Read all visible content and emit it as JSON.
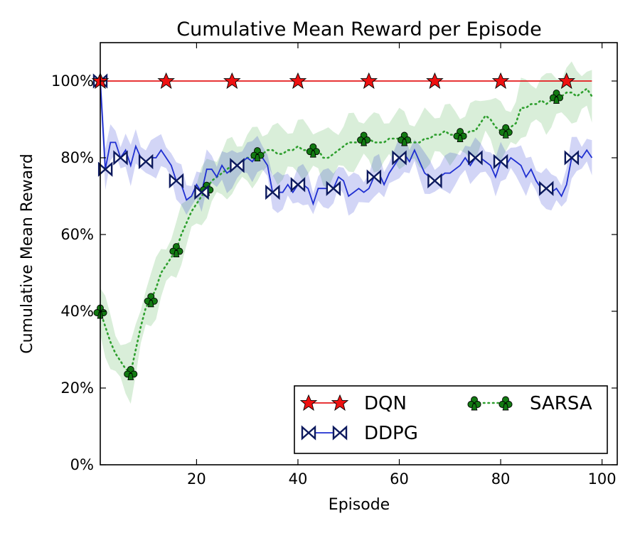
{
  "chart_data": {
    "type": "line",
    "title": "Cumulative Mean Reward per Episode",
    "xlabel": "Episode",
    "ylabel": "Cumulative Mean Reward",
    "xlim": [
      1,
      103
    ],
    "ylim": [
      0,
      1.1
    ],
    "xticks": [
      20,
      40,
      60,
      80,
      100
    ],
    "yticks": [
      0,
      0.2,
      0.4,
      0.6,
      0.8,
      1.0
    ],
    "ytick_labels": [
      "0%",
      "20%",
      "40%",
      "60%",
      "80%",
      "100%"
    ],
    "grid": false,
    "legend_position": "bottom-right",
    "series": [
      {
        "name": "DQN",
        "color": "#e41a1c",
        "marker": "star",
        "marker_color": "#ee1111",
        "line_style": "solid",
        "x": [
          1,
          14,
          27,
          40,
          54,
          67,
          80,
          93,
          98
        ],
        "y": [
          1.0,
          1.0,
          1.0,
          1.0,
          1.0,
          1.0,
          1.0,
          1.0,
          1.0
        ],
        "band_width": 0.0,
        "marker_x": [
          1,
          14,
          27,
          40,
          54,
          67,
          80,
          93
        ]
      },
      {
        "name": "DDPG",
        "color": "#1f2fd1",
        "marker": "bowtie",
        "marker_color": "#0d1a5e",
        "line_style": "solid",
        "x": [
          1,
          2,
          3,
          4,
          5,
          6,
          7,
          8,
          9,
          10,
          11,
          12,
          13,
          14,
          15,
          16,
          17,
          18,
          19,
          20,
          21,
          22,
          23,
          24,
          25,
          26,
          27,
          28,
          29,
          30,
          31,
          32,
          33,
          34,
          35,
          36,
          37,
          38,
          39,
          40,
          41,
          42,
          43,
          44,
          45,
          46,
          47,
          48,
          49,
          50,
          51,
          52,
          53,
          54,
          55,
          56,
          57,
          58,
          59,
          60,
          61,
          62,
          63,
          64,
          65,
          66,
          67,
          68,
          69,
          70,
          71,
          72,
          73,
          74,
          75,
          76,
          77,
          78,
          79,
          80,
          81,
          82,
          83,
          84,
          85,
          86,
          87,
          88,
          89,
          90,
          91,
          92,
          93,
          94,
          95,
          96,
          97,
          98
        ],
        "y": [
          1.0,
          0.77,
          0.84,
          0.84,
          0.8,
          0.82,
          0.78,
          0.83,
          0.8,
          0.79,
          0.8,
          0.8,
          0.82,
          0.8,
          0.78,
          0.74,
          0.73,
          0.69,
          0.7,
          0.73,
          0.71,
          0.77,
          0.77,
          0.75,
          0.78,
          0.76,
          0.77,
          0.78,
          0.79,
          0.8,
          0.79,
          0.81,
          0.8,
          0.78,
          0.71,
          0.71,
          0.71,
          0.73,
          0.71,
          0.73,
          0.73,
          0.72,
          0.68,
          0.72,
          0.72,
          0.72,
          0.72,
          0.75,
          0.74,
          0.7,
          0.71,
          0.72,
          0.71,
          0.72,
          0.75,
          0.76,
          0.73,
          0.76,
          0.78,
          0.8,
          0.81,
          0.79,
          0.82,
          0.79,
          0.76,
          0.75,
          0.74,
          0.75,
          0.76,
          0.76,
          0.77,
          0.78,
          0.8,
          0.78,
          0.8,
          0.8,
          0.79,
          0.78,
          0.75,
          0.79,
          0.78,
          0.8,
          0.79,
          0.78,
          0.75,
          0.77,
          0.74,
          0.72,
          0.72,
          0.71,
          0.72,
          0.7,
          0.73,
          0.8,
          0.81,
          0.8,
          0.82,
          0.8
        ],
        "band_width": 0.04,
        "marker_x": [
          1,
          2,
          5,
          10,
          16,
          21,
          28,
          35,
          40,
          47,
          55,
          60,
          67,
          75,
          80,
          89,
          94
        ]
      },
      {
        "name": "SARSA",
        "color": "#2e9f2e",
        "marker": "club",
        "marker_color": "#127a12",
        "line_style": "dotted",
        "band_color": "#2ca02c",
        "x": [
          1,
          2,
          3,
          4,
          5,
          6,
          7,
          8,
          9,
          10,
          11,
          12,
          13,
          14,
          15,
          16,
          17,
          18,
          19,
          20,
          21,
          22,
          23,
          24,
          25,
          26,
          27,
          28,
          29,
          30,
          31,
          32,
          33,
          34,
          35,
          36,
          37,
          38,
          39,
          40,
          41,
          42,
          43,
          44,
          45,
          46,
          47,
          48,
          49,
          50,
          51,
          52,
          53,
          54,
          55,
          56,
          57,
          58,
          59,
          60,
          61,
          62,
          63,
          64,
          65,
          66,
          67,
          68,
          69,
          70,
          71,
          72,
          73,
          74,
          75,
          76,
          77,
          78,
          79,
          80,
          81,
          82,
          83,
          84,
          85,
          86,
          87,
          88,
          89,
          90,
          91,
          92,
          93,
          94,
          95,
          96,
          97,
          98
        ],
        "y": [
          0.4,
          0.36,
          0.32,
          0.29,
          0.27,
          0.25,
          0.24,
          0.3,
          0.36,
          0.41,
          0.43,
          0.46,
          0.5,
          0.52,
          0.54,
          0.56,
          0.6,
          0.63,
          0.66,
          0.68,
          0.7,
          0.72,
          0.74,
          0.75,
          0.76,
          0.77,
          0.78,
          0.78,
          0.79,
          0.8,
          0.8,
          0.81,
          0.81,
          0.82,
          0.82,
          0.81,
          0.81,
          0.82,
          0.82,
          0.83,
          0.82,
          0.82,
          0.82,
          0.82,
          0.8,
          0.8,
          0.81,
          0.82,
          0.83,
          0.84,
          0.84,
          0.84,
          0.85,
          0.85,
          0.84,
          0.84,
          0.84,
          0.85,
          0.85,
          0.85,
          0.85,
          0.84,
          0.84,
          0.84,
          0.85,
          0.85,
          0.86,
          0.86,
          0.87,
          0.86,
          0.86,
          0.86,
          0.86,
          0.87,
          0.87,
          0.89,
          0.91,
          0.9,
          0.88,
          0.87,
          0.87,
          0.88,
          0.89,
          0.93,
          0.93,
          0.94,
          0.94,
          0.95,
          0.94,
          0.95,
          0.96,
          0.96,
          0.97,
          0.97,
          0.96,
          0.97,
          0.98,
          0.96
        ],
        "band_width": 0.06,
        "marker_x": [
          1,
          7,
          11,
          16,
          22,
          32,
          43,
          53,
          61,
          72,
          81,
          91
        ]
      }
    ]
  }
}
